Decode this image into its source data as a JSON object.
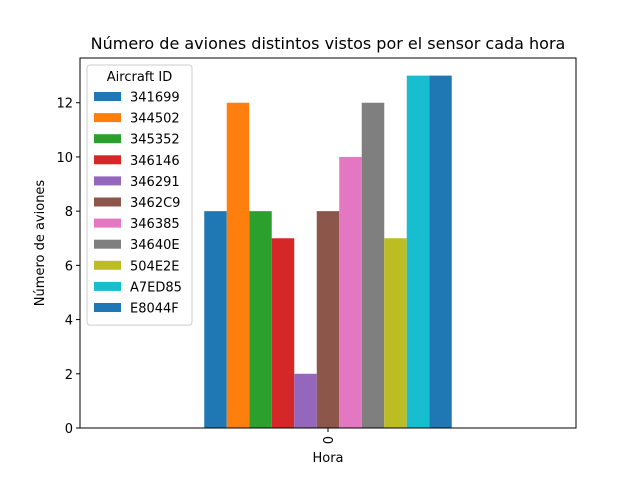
{
  "chart_data": {
    "type": "bar",
    "title": "Número de aviones distintos vistos por el sensor cada hora",
    "xlabel": "Hora",
    "ylabel": "Número de aviones",
    "categories": [
      "0"
    ],
    "ylim": [
      0,
      13.65
    ],
    "yticks": [
      0,
      2,
      4,
      6,
      8,
      10,
      12
    ],
    "grid": false,
    "legend": {
      "title": "Aircraft ID",
      "position": "top-left"
    },
    "series": [
      {
        "name": "341699",
        "values": [
          8
        ],
        "color": "#1f77b4"
      },
      {
        "name": "344502",
        "values": [
          12
        ],
        "color": "#ff7f0e"
      },
      {
        "name": "345352",
        "values": [
          8
        ],
        "color": "#2ca02c"
      },
      {
        "name": "346146",
        "values": [
          7
        ],
        "color": "#d62728"
      },
      {
        "name": "346291",
        "values": [
          2
        ],
        "color": "#9467bd"
      },
      {
        "name": "3462C9",
        "values": [
          8
        ],
        "color": "#8c564b"
      },
      {
        "name": "346385",
        "values": [
          10
        ],
        "color": "#e377c2"
      },
      {
        "name": "34640E",
        "values": [
          12
        ],
        "color": "#7f7f7f"
      },
      {
        "name": "504E2E",
        "values": [
          7
        ],
        "color": "#bcbd22"
      },
      {
        "name": "A7ED85",
        "values": [
          13
        ],
        "color": "#17becf"
      },
      {
        "name": "E8044F",
        "values": [
          13
        ],
        "color": "#1f77b4"
      }
    ]
  }
}
